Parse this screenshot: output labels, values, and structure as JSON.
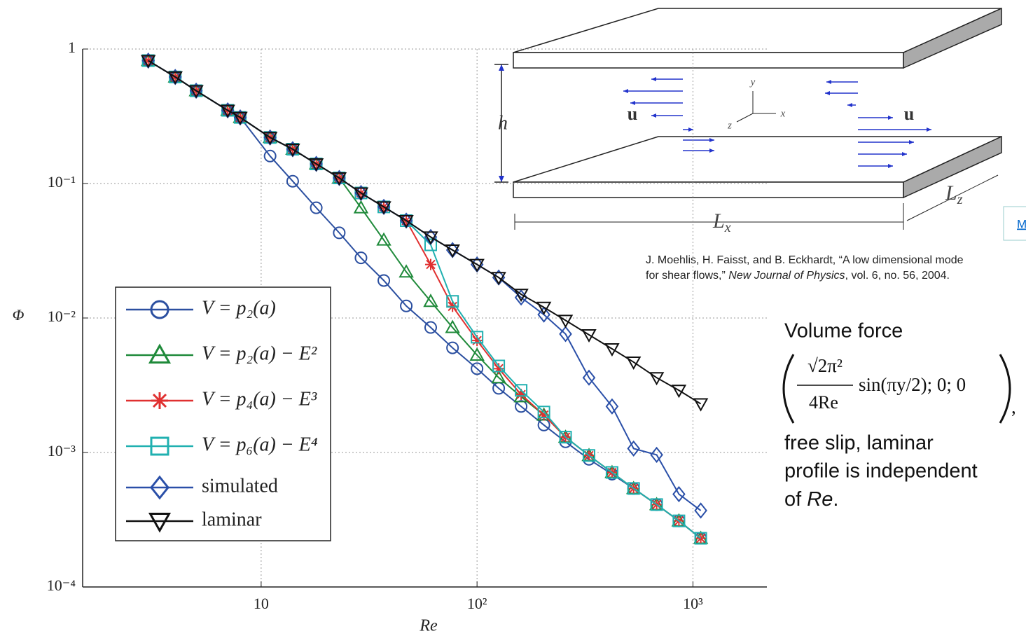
{
  "chart_data": {
    "type": "line",
    "x_scale": "log",
    "y_scale": "log",
    "grid": true,
    "xlabel": "Re",
    "ylabel": "Φ",
    "xlim": [
      1.49,
      2200
    ],
    "ylim": [
      0.0001,
      1
    ],
    "xticks": [
      10,
      {
        "value": 100,
        "label": "10²"
      },
      {
        "value": 1000,
        "label": "10³"
      }
    ],
    "yticks": [
      {
        "value": 0.0001,
        "label": "10⁻⁴"
      },
      {
        "value": 0.001,
        "label": "10⁻³"
      },
      {
        "value": 0.01,
        "label": "10⁻²"
      },
      {
        "value": 0.1,
        "label": "10⁻¹"
      },
      1
    ],
    "x": [
      3,
      4,
      5,
      7,
      8,
      11,
      14,
      18,
      23,
      29,
      37,
      47,
      61,
      77,
      100,
      126,
      160,
      204,
      257,
      330,
      422,
      531,
      679,
      861,
      1087
    ],
    "series": [
      {
        "name": "V = p₂(a)",
        "color": "#2b4fa0",
        "marker": "circle",
        "values": [
          0.82,
          0.62,
          0.49,
          0.35,
          0.31,
          0.16,
          0.104,
          0.066,
          0.043,
          0.028,
          0.019,
          0.0123,
          0.0085,
          0.006,
          0.0042,
          0.003,
          0.0022,
          0.0016,
          0.0012,
          0.00089,
          0.00069,
          0.00054,
          0.00041,
          0.00031,
          0.00023
        ]
      },
      {
        "name": "V = p₂(a) − E²",
        "color": "#1f8a3a",
        "marker": "triangle-up",
        "values": [
          0.82,
          0.62,
          0.49,
          0.35,
          0.31,
          0.22,
          0.18,
          0.14,
          0.11,
          0.066,
          0.038,
          0.022,
          0.0133,
          0.0085,
          0.0053,
          0.0036,
          0.0026,
          0.0019,
          0.0013,
          0.00095,
          0.00071,
          0.00054,
          0.00041,
          0.00031,
          0.00023
        ]
      },
      {
        "name": "V = p₄(a) − E³",
        "color": "#e03030",
        "marker": "star",
        "values": [
          0.82,
          0.62,
          0.49,
          0.35,
          0.31,
          0.22,
          0.18,
          0.14,
          0.11,
          0.085,
          0.067,
          0.053,
          0.025,
          0.0122,
          0.0068,
          0.0042,
          0.0027,
          0.0019,
          0.0013,
          0.00095,
          0.00071,
          0.00054,
          0.00041,
          0.00031,
          0.00023
        ]
      },
      {
        "name": "V = p₆(a) − E⁴",
        "color": "#20b0b0",
        "marker": "square",
        "values": [
          0.82,
          0.62,
          0.49,
          0.35,
          0.31,
          0.22,
          0.18,
          0.14,
          0.11,
          0.085,
          0.067,
          0.053,
          0.035,
          0.0133,
          0.0072,
          0.0044,
          0.0029,
          0.002,
          0.0013,
          0.00095,
          0.00071,
          0.00054,
          0.00041,
          0.00031,
          0.00023
        ]
      },
      {
        "name": "simulated",
        "color": "#2a4fa8",
        "marker": "diamond",
        "values": [
          0.82,
          0.62,
          0.49,
          0.35,
          0.31,
          0.22,
          0.18,
          0.14,
          0.11,
          0.085,
          0.067,
          0.053,
          0.04,
          0.032,
          0.025,
          0.02,
          0.0142,
          0.0106,
          0.0076,
          0.0036,
          0.0022,
          0.00107,
          0.00096,
          0.00049,
          0.00037
        ]
      },
      {
        "name": "laminar",
        "color": "#111111",
        "marker": "triangle-down",
        "values": [
          0.82,
          0.62,
          0.49,
          0.35,
          0.31,
          0.22,
          0.18,
          0.14,
          0.11,
          0.085,
          0.067,
          0.053,
          0.04,
          0.032,
          0.025,
          0.02,
          0.015,
          0.012,
          0.0096,
          0.0075,
          0.0059,
          0.0047,
          0.0036,
          0.0029,
          0.0023
        ]
      }
    ]
  },
  "diagram": {
    "h": "h",
    "u_left": "u",
    "u_right": "u",
    "axis_x": "x",
    "axis_y": "y",
    "axis_z": "z",
    "Lx": {
      "main": "L",
      "sub": "x"
    },
    "Lz": {
      "main": "L",
      "sub": "z"
    }
  },
  "citation": {
    "line1": "J. Moehlis, H. Faisst, and B. Eckhardt, “A low dimensional mode",
    "line2_pre": "for shear flows,” ",
    "journal": "New Journal of Physics",
    "line2_post": ", vol. 6, no. 56, 2004."
  },
  "link": "M",
  "notes": {
    "heading": "Volume  force",
    "numerator": "√2π²",
    "denominator": "4Re",
    "rest": "sin(πy/2); 0; 0",
    "trail": ",",
    "line1": "free slip, laminar",
    "line2": "profile is independent",
    "line3_pre": "of ",
    "line3_em": "Re",
    "line3_post": "."
  }
}
